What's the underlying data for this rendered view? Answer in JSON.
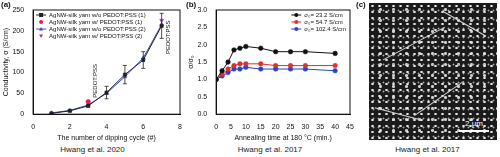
{
  "chart_data": [
    {
      "type": "line",
      "panel": "(a)",
      "source": "Hwang et al. 2020",
      "x_label": "The number of dipping cycle (#)",
      "y_label": "Conductivity, σ (S/cm)",
      "xlim": [
        0,
        8
      ],
      "xticks": [
        0,
        2,
        4,
        6,
        8
      ],
      "ylim": [
        0,
        250
      ],
      "yticks": [
        0,
        50,
        100,
        150,
        200,
        250
      ],
      "grid": false,
      "legend": "upper left",
      "series": [
        {
          "name": "AgNW-silk yarn w/o PEDOT:PSS (1)",
          "color": "#222222",
          "marker": "square",
          "line_style": "solid",
          "x": [
            1,
            2,
            3,
            4,
            5,
            6,
            7
          ],
          "values": [
            2,
            8,
            20,
            52,
            95,
            130,
            212
          ],
          "errors": [
            1,
            2,
            3,
            15,
            22,
            20,
            30
          ]
        },
        {
          "name": "AgNW-silk yarn w/ PEDOT:PSS (1)",
          "color": "#e8175d",
          "marker": "circle",
          "line_style": "none",
          "x": [
            3
          ],
          "values": [
            30
          ]
        },
        {
          "name": "AgNW-silk yarn w/o PEDOT:PSS (2)",
          "color": "#3b4cc0",
          "marker": "triangle",
          "line_style": "solid",
          "x": [
            1,
            2,
            3,
            4,
            5,
            6,
            7
          ],
          "values": [
            3,
            9,
            22,
            50,
            90,
            135,
            215
          ]
        },
        {
          "name": "AgNW-silk yarn w/ PEDOT:PSS (2)",
          "color": "#8e3fb0",
          "marker": "triangle_down",
          "line_style": "none",
          "x": [
            7
          ],
          "values": [
            225
          ]
        }
      ],
      "annotations": [
        {
          "text": "PEDOT:PSS",
          "x": 3,
          "y": 30
        },
        {
          "text": "PEDOT:PSS",
          "x": 7,
          "y": 225
        }
      ]
    },
    {
      "type": "line",
      "panel": "(b)",
      "source": "Hwang et al. 2017",
      "x_label": "Annealing time at 180 °C (min.)",
      "y_label": "σ/σ₀",
      "xlim": [
        0,
        45
      ],
      "xticks": [
        0,
        5,
        10,
        15,
        20,
        25,
        30,
        35,
        40,
        45
      ],
      "ylim": [
        0,
        3
      ],
      "yticks": [
        {
          "value": 0,
          "label": "0.0"
        },
        0.5,
        {
          "value": 1,
          "label": "1.0"
        },
        1.5,
        {
          "value": 2,
          "label": "2.0"
        },
        2.5,
        {
          "value": 3,
          "label": "3.0"
        }
      ],
      "grid": false,
      "legend": "upper right",
      "series": [
        {
          "name": "σ₀= 23.2 S/cm",
          "color": "#111111",
          "marker": "circle",
          "line_style": "solid",
          "x": [
            0,
            2,
            4,
            6,
            8,
            10,
            15,
            20,
            25,
            30,
            40
          ],
          "values": [
            1.0,
            1.25,
            1.5,
            1.85,
            1.9,
            1.95,
            1.9,
            1.8,
            1.8,
            1.8,
            1.75
          ]
        },
        {
          "name": "σ₀= 54.7 S/cm",
          "color": "#e0302a",
          "marker": "circle",
          "line_style": "solid",
          "x": [
            0,
            2,
            4,
            6,
            8,
            10,
            15,
            20,
            25,
            30,
            40
          ],
          "values": [
            1.0,
            1.15,
            1.3,
            1.4,
            1.45,
            1.45,
            1.45,
            1.4,
            1.4,
            1.4,
            1.4
          ]
        },
        {
          "name": "σ₀= 102.4 S/cm",
          "color": "#2a43c8",
          "marker": "circle",
          "line_style": "solid",
          "x": [
            0,
            2,
            4,
            6,
            8,
            10,
            15,
            20,
            25,
            30,
            40
          ],
          "values": [
            1.0,
            1.1,
            1.2,
            1.3,
            1.3,
            1.35,
            1.3,
            1.3,
            1.3,
            1.3,
            1.25
          ]
        }
      ]
    }
  ],
  "image": {
    "panel": "(c)",
    "scale_bar": "2 μm",
    "source": "Hwang et al. 2017"
  }
}
